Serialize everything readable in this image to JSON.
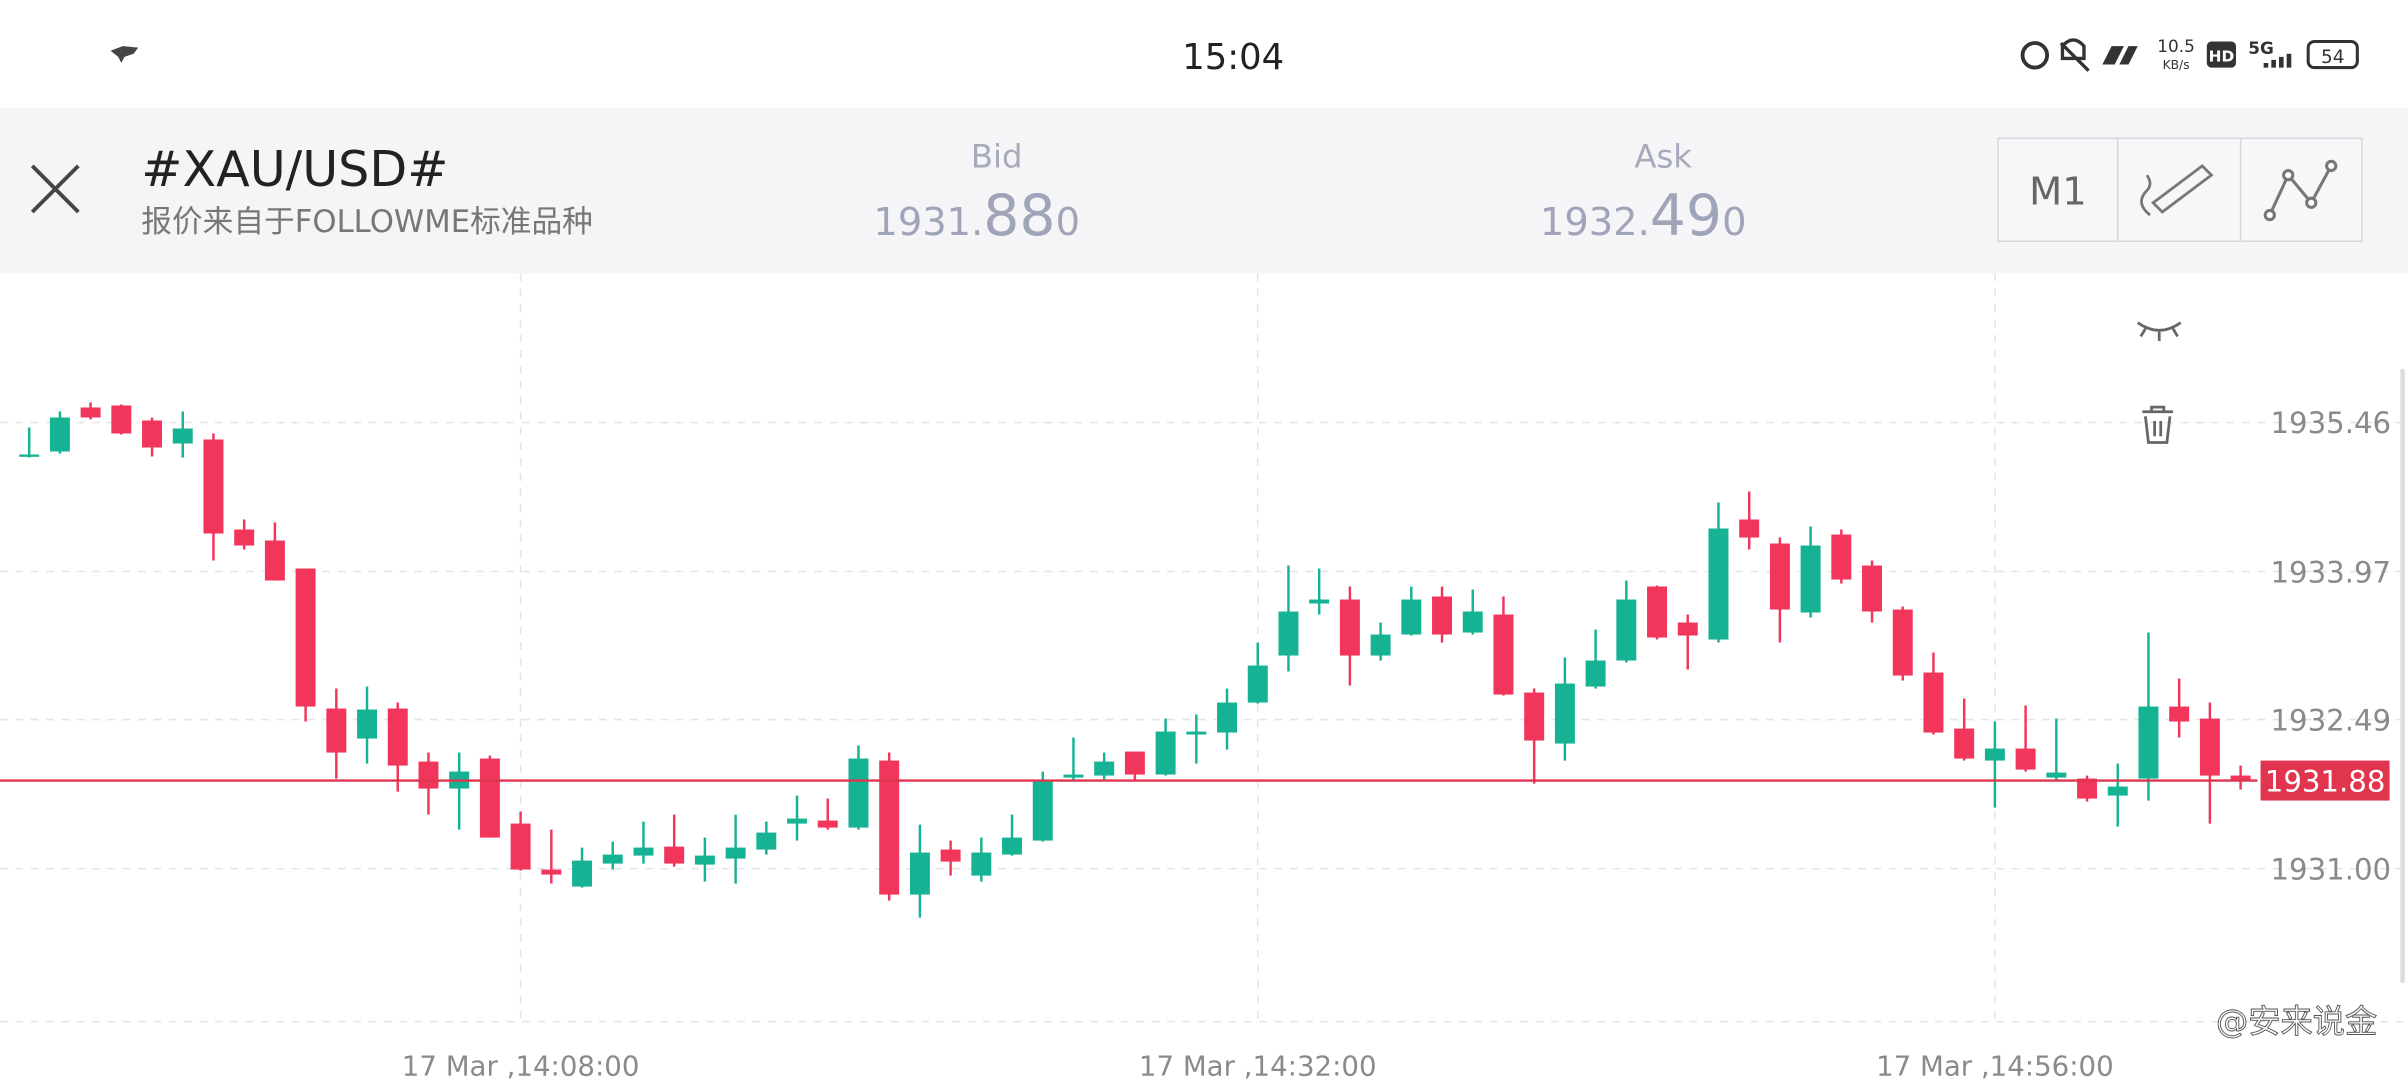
{
  "status_bar": {
    "time": "15:04",
    "net_speed": "10.5",
    "net_unit": "KB/s",
    "hd": "HD",
    "network": "5G",
    "battery": "54"
  },
  "header": {
    "title": "#XAU/USD#",
    "subtitle": "报价来自于FOLLOWME标准品种",
    "bid": {
      "label": "Bid",
      "price": [
        "1931.",
        "88",
        "0"
      ]
    },
    "ask": {
      "label": "Ask",
      "price": [
        "1932.",
        "49",
        "0"
      ]
    },
    "timeframe": "M1"
  },
  "watermark": "@安来说金",
  "chart_data": {
    "type": "candlestick",
    "categories": [
      null,
      null,
      null,
      null,
      null,
      null,
      null,
      null,
      null,
      null,
      null,
      null,
      null,
      null,
      null,
      null,
      "17 Mar ,14:08:00",
      null,
      null,
      null,
      null,
      null,
      null,
      null,
      null,
      null,
      null,
      null,
      null,
      null,
      null,
      null,
      null,
      null,
      null,
      null,
      null,
      null,
      null,
      null,
      "17 Mar ,14:32:00",
      null,
      null,
      null,
      null,
      null,
      null,
      null,
      null,
      null,
      null,
      null,
      null,
      null,
      null,
      null,
      null,
      null,
      null,
      null,
      null,
      null,
      null,
      null,
      "17 Mar ,14:56:00",
      null,
      null,
      null,
      null,
      null,
      null,
      null,
      null
    ],
    "open": [
      1935.12,
      1935.17,
      1935.61,
      1935.63,
      1935.48,
      1935.25,
      1935.29,
      1934.39,
      1934.28,
      1934.0,
      1932.6,
      1932.3,
      1932.6,
      1932.07,
      1931.8,
      1932.1,
      1931.45,
      1930.99,
      1930.82,
      1931.05,
      1931.13,
      1931.22,
      1931.04,
      1931.1,
      1931.19,
      1931.45,
      1931.48,
      1931.41,
      1932.08,
      1930.74,
      1931.19,
      1930.93,
      1931.14,
      1931.28,
      1931.91,
      1931.93,
      1932.17,
      1931.94,
      1932.34,
      1932.36,
      1932.66,
      1933.13,
      1933.65,
      1933.69,
      1933.13,
      1933.34,
      1933.72,
      1933.36,
      1933.54,
      1932.76,
      1932.25,
      1932.82,
      1933.08,
      1933.82,
      1933.46,
      1933.29,
      1934.49,
      1934.25,
      1933.56,
      1934.34,
      1934.03,
      1933.59,
      1932.96,
      1932.4,
      1932.08,
      1932.2,
      1931.91,
      1931.9,
      1931.73,
      1931.9,
      1932.62,
      1932.5,
      1931.93
    ],
    "high": [
      1935.41,
      1935.57,
      1935.66,
      1935.64,
      1935.51,
      1935.57,
      1935.35,
      1934.49,
      1934.46,
      1934.0,
      1932.8,
      1932.82,
      1932.66,
      1932.16,
      1932.16,
      1932.13,
      1931.57,
      1931.39,
      1931.21,
      1931.27,
      1931.47,
      1931.54,
      1931.31,
      1931.54,
      1931.47,
      1931.73,
      1931.7,
      1932.23,
      1932.16,
      1931.44,
      1931.28,
      1931.31,
      1931.54,
      1931.97,
      1932.31,
      1932.16,
      1932.17,
      1932.5,
      1932.54,
      1932.8,
      1933.26,
      1934.03,
      1934.0,
      1933.82,
      1933.46,
      1933.82,
      1933.82,
      1933.79,
      1933.72,
      1932.8,
      1933.11,
      1933.39,
      1933.88,
      1933.83,
      1933.54,
      1934.66,
      1934.77,
      1934.31,
      1934.42,
      1934.39,
      1934.08,
      1933.62,
      1933.16,
      1932.7,
      1932.47,
      1932.63,
      1932.5,
      1931.93,
      1932.05,
      1933.36,
      1932.9,
      1932.66,
      1932.03
    ],
    "low": [
      1935.11,
      1935.15,
      1935.49,
      1935.34,
      1935.12,
      1935.11,
      1934.08,
      1934.19,
      1933.88,
      1932.47,
      1931.9,
      1932.05,
      1931.77,
      1931.54,
      1931.39,
      1931.31,
      1930.98,
      1930.85,
      1930.81,
      1930.99,
      1931.05,
      1931.02,
      1930.87,
      1930.85,
      1931.14,
      1931.28,
      1931.39,
      1931.39,
      1930.68,
      1930.51,
      1930.93,
      1930.87,
      1931.13,
      1931.27,
      1931.88,
      1931.88,
      1931.88,
      1931.93,
      1932.05,
      1932.19,
      1932.65,
      1932.97,
      1933.54,
      1932.83,
      1933.08,
      1933.33,
      1933.26,
      1933.34,
      1932.73,
      1931.85,
      1932.08,
      1932.8,
      1933.06,
      1933.29,
      1932.99,
      1933.26,
      1934.19,
      1933.26,
      1933.51,
      1933.85,
      1933.46,
      1932.88,
      1932.34,
      1932.08,
      1931.61,
      1931.97,
      1931.88,
      1931.67,
      1931.42,
      1931.68,
      1932.31,
      1931.45,
      1931.79
    ],
    "close": [
      1935.14,
      1935.51,
      1935.51,
      1935.35,
      1935.21,
      1935.4,
      1934.35,
      1934.23,
      1933.88,
      1932.62,
      1932.16,
      1932.59,
      1932.03,
      1931.8,
      1931.97,
      1931.31,
      1930.99,
      1930.94,
      1931.08,
      1931.14,
      1931.21,
      1931.05,
      1931.13,
      1931.21,
      1931.36,
      1931.5,
      1931.41,
      1932.1,
      1930.74,
      1931.16,
      1931.07,
      1931.16,
      1931.31,
      1931.88,
      1931.94,
      1932.07,
      1931.94,
      1932.37,
      1932.37,
      1932.66,
      1933.03,
      1933.57,
      1933.69,
      1933.13,
      1933.34,
      1933.69,
      1933.34,
      1933.57,
      1932.74,
      1932.28,
      1932.85,
      1933.08,
      1933.69,
      1933.31,
      1933.33,
      1934.4,
      1934.31,
      1933.59,
      1934.23,
      1933.89,
      1933.57,
      1932.93,
      1932.36,
      1932.1,
      1932.2,
      1931.99,
      1931.96,
      1931.7,
      1931.82,
      1932.62,
      1932.47,
      1931.93,
      1931.88
    ],
    "up_color": "#16b294",
    "down_color": "#f2355b",
    "price_line": 1931.88,
    "price_line_color": "#e0344f",
    "ylim": [
      1929.47,
      1936.95
    ],
    "yticks": [
      1935.46,
      1933.97,
      1932.49,
      {
        "value": 1931,
        "label": "1931.00"
      }
    ],
    "grid": true
  }
}
